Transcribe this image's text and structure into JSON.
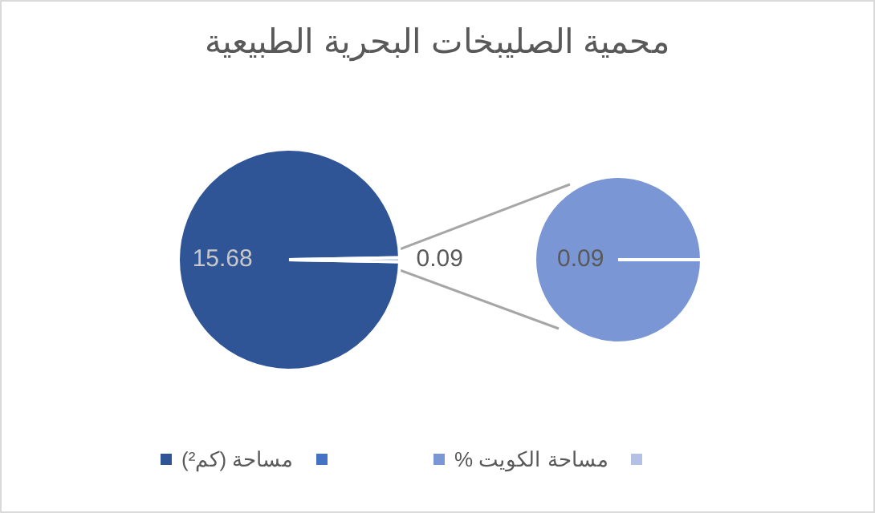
{
  "chart_data": [
    {
      "type": "pie",
      "title": "محمية الصليبخات البحرية الطبيعية",
      "categories": [
        "مساحة (كم²)",
        null
      ],
      "values": [
        15.68,
        0.09
      ],
      "colors": [
        "#2f5597",
        "#4472c4"
      ],
      "value_labels": [
        "15.68",
        "0.09"
      ],
      "legend": "bottom"
    },
    {
      "type": "pie",
      "categories": [
        "مساحة الكويت %",
        null
      ],
      "values": [
        0.09,
        0
      ],
      "colors": [
        "#7a96d4",
        "#b4c0e4"
      ],
      "value_labels": [
        "0.09",
        null
      ],
      "legend": "bottom"
    }
  ]
}
